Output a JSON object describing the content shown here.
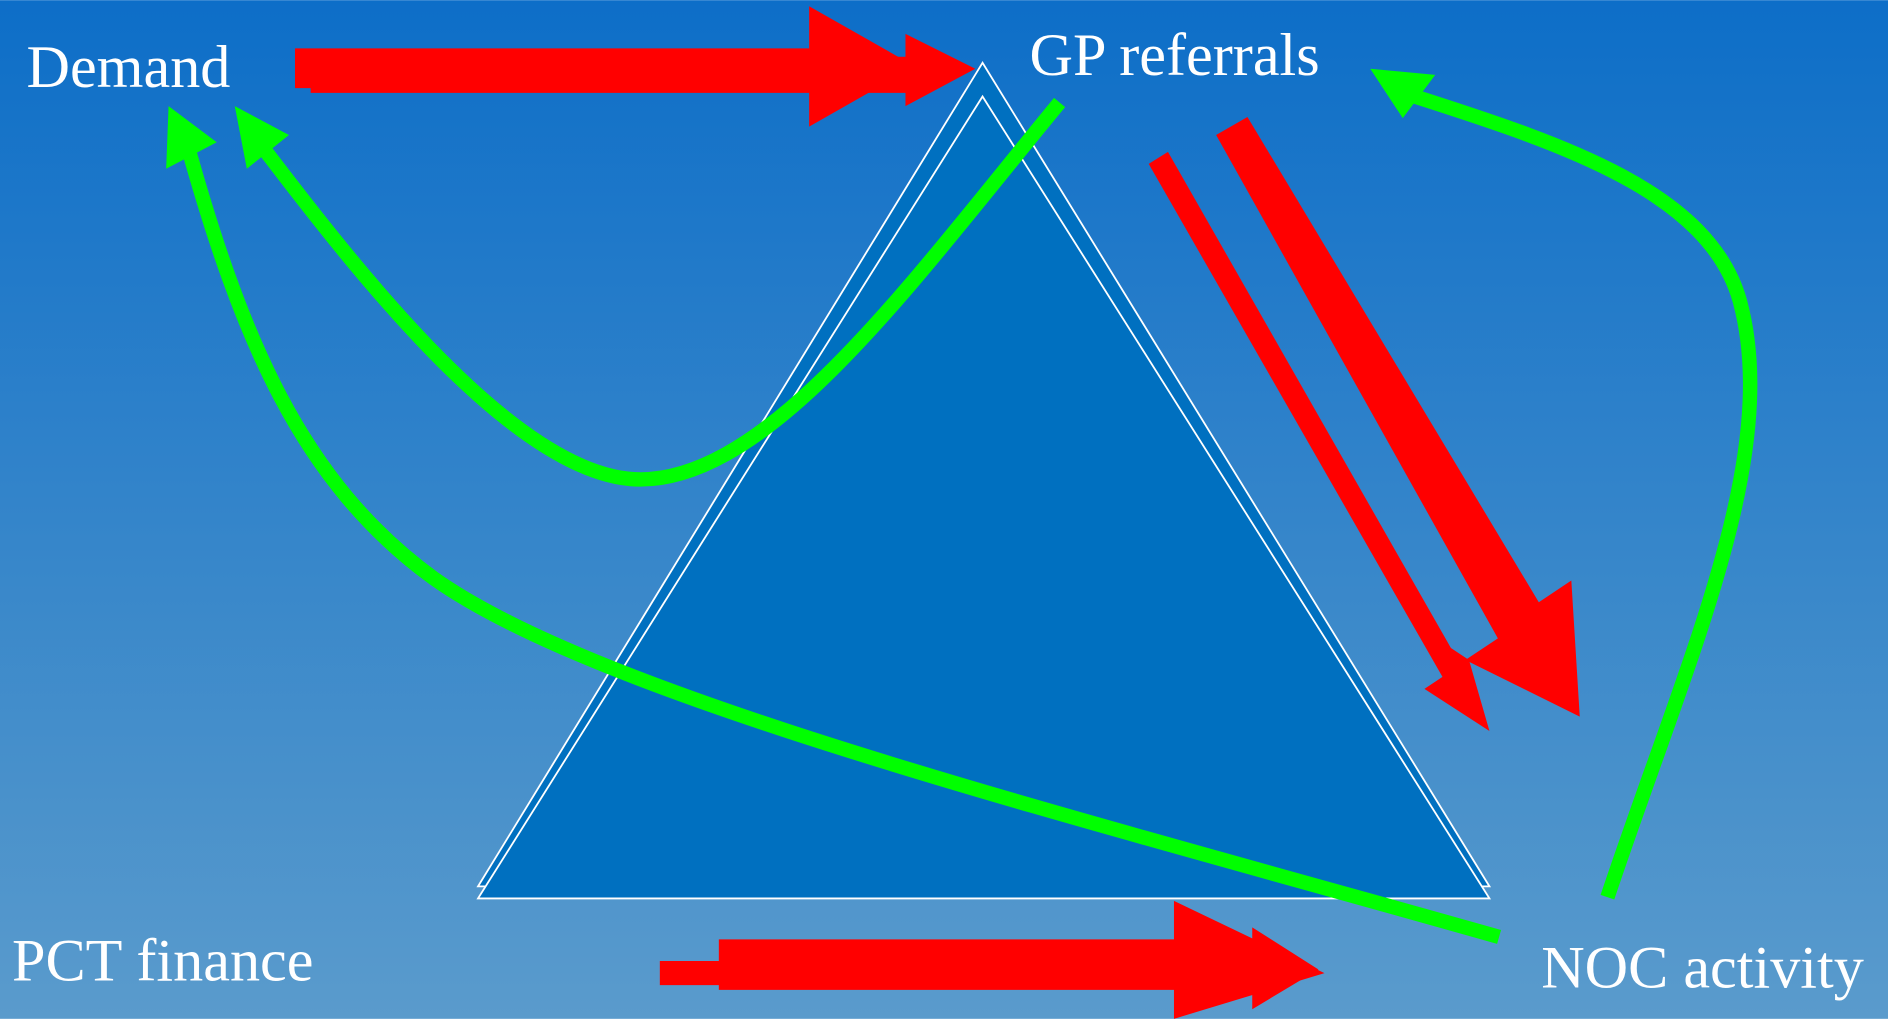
{
  "nodes": [
    {
      "label": "Demand"
    },
    {
      "label": "GP referrals"
    },
    {
      "label": "PCT finance"
    },
    {
      "label": "NOC activity"
    }
  ]
}
